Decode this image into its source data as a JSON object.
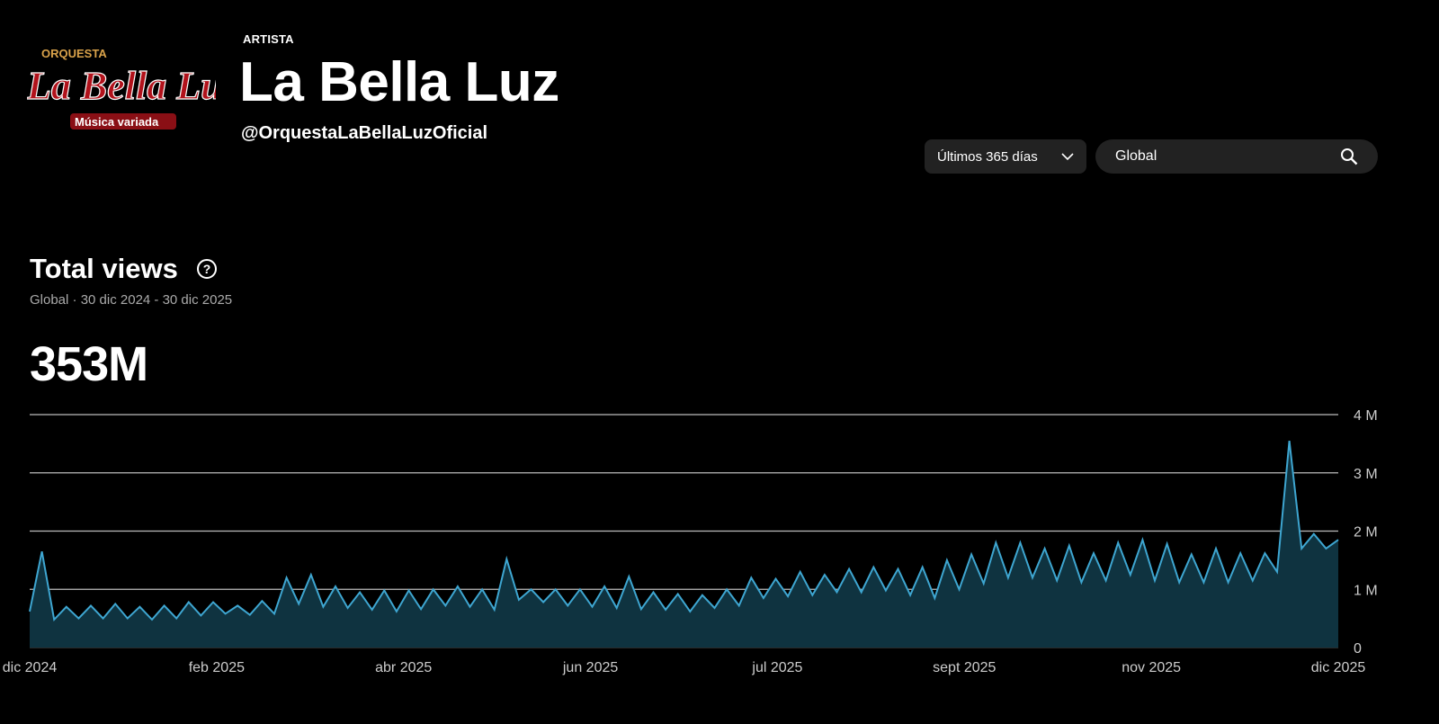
{
  "header": {
    "logo": {
      "line1": "ORQUESTA",
      "line2": "La Bella Luz",
      "line3": "Música variada"
    },
    "eyebrow": "ARTISTA",
    "title": "La Bella Luz",
    "handle": "@OrquestaLaBellaLuzOficial"
  },
  "controls": {
    "range_label": "Últimos 365 días",
    "region_value": "Global",
    "icons": {
      "range": "chevron-down-icon",
      "search": "search-icon"
    }
  },
  "section": {
    "title": "Total views",
    "subtitle": "Global · 30 dic 2024 - 30 dic 2025",
    "total": "353M"
  },
  "chart_data": {
    "type": "area",
    "x_range": [
      "30 dic 2024",
      "30 dic 2025"
    ],
    "x_tick_labels": [
      "dic 2024",
      "feb 2025",
      "abr 2025",
      "jun 2025",
      "jul 2025",
      "sept 2025",
      "nov 2025",
      "dic 2025"
    ],
    "y_tick_labels": [
      "0",
      "1 M",
      "2 M",
      "3 M",
      "4 M"
    ],
    "ylim": [
      0,
      4000000
    ],
    "grid": true,
    "line_color": "#3ea6d1",
    "fill_color": "#0f3340",
    "values_millions": [
      0.62,
      1.65,
      0.48,
      0.7,
      0.5,
      0.72,
      0.5,
      0.75,
      0.5,
      0.7,
      0.48,
      0.72,
      0.5,
      0.78,
      0.55,
      0.78,
      0.58,
      0.72,
      0.56,
      0.8,
      0.58,
      1.2,
      0.75,
      1.25,
      0.7,
      1.05,
      0.68,
      0.95,
      0.65,
      0.98,
      0.62,
      0.98,
      0.66,
      1.0,
      0.72,
      1.05,
      0.7,
      1.0,
      0.65,
      1.52,
      0.82,
      1.0,
      0.78,
      1.0,
      0.72,
      1.0,
      0.7,
      1.05,
      0.68,
      1.22,
      0.66,
      0.95,
      0.65,
      0.92,
      0.62,
      0.9,
      0.68,
      1.0,
      0.72,
      1.2,
      0.85,
      1.18,
      0.88,
      1.3,
      0.9,
      1.25,
      0.95,
      1.35,
      0.95,
      1.38,
      0.98,
      1.35,
      0.9,
      1.38,
      0.85,
      1.5,
      1.0,
      1.6,
      1.1,
      1.8,
      1.2,
      1.8,
      1.2,
      1.7,
      1.15,
      1.75,
      1.12,
      1.62,
      1.15,
      1.8,
      1.25,
      1.85,
      1.15,
      1.78,
      1.12,
      1.6,
      1.12,
      1.7,
      1.12,
      1.62,
      1.15,
      1.62,
      1.3,
      3.55,
      1.7,
      1.95,
      1.7,
      1.85
    ]
  }
}
